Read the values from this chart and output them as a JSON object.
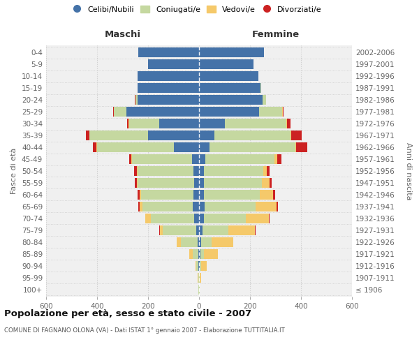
{
  "age_groups": [
    "100+",
    "95-99",
    "90-94",
    "85-89",
    "80-84",
    "75-79",
    "70-74",
    "65-69",
    "60-64",
    "55-59",
    "50-54",
    "45-49",
    "40-44",
    "35-39",
    "30-34",
    "25-29",
    "20-24",
    "15-19",
    "10-14",
    "5-9",
    "0-4"
  ],
  "birth_years": [
    "≤ 1906",
    "1907-1911",
    "1912-1916",
    "1917-1921",
    "1922-1926",
    "1927-1931",
    "1932-1936",
    "1937-1941",
    "1942-1946",
    "1947-1951",
    "1952-1956",
    "1957-1961",
    "1962-1966",
    "1967-1971",
    "1972-1976",
    "1977-1981",
    "1982-1986",
    "1987-1991",
    "1992-1996",
    "1997-2001",
    "2002-2006"
  ],
  "maschi": {
    "celibi": [
      1,
      1,
      2,
      4,
      5,
      12,
      20,
      25,
      22,
      20,
      22,
      28,
      100,
      200,
      155,
      285,
      240,
      240,
      240,
      200,
      238
    ],
    "coniugati": [
      1,
      2,
      8,
      22,
      65,
      130,
      168,
      198,
      205,
      220,
      220,
      235,
      300,
      230,
      120,
      48,
      10,
      2,
      0,
      0,
      0
    ],
    "vedovi": [
      0,
      2,
      5,
      12,
      18,
      12,
      22,
      10,
      6,
      3,
      2,
      2,
      2,
      1,
      1,
      1,
      0,
      0,
      0,
      0,
      0
    ],
    "divorziati": [
      0,
      0,
      0,
      0,
      0,
      2,
      2,
      5,
      8,
      8,
      10,
      10,
      15,
      12,
      5,
      2,
      1,
      0,
      0,
      0,
      0
    ]
  },
  "femmine": {
    "nubili": [
      1,
      1,
      3,
      5,
      8,
      14,
      18,
      22,
      20,
      18,
      18,
      25,
      42,
      60,
      100,
      235,
      248,
      242,
      232,
      215,
      255
    ],
    "coniugate": [
      1,
      2,
      5,
      15,
      40,
      100,
      165,
      200,
      218,
      228,
      235,
      272,
      335,
      298,
      242,
      92,
      15,
      2,
      0,
      0,
      0
    ],
    "vedove": [
      2,
      5,
      22,
      55,
      85,
      105,
      92,
      82,
      52,
      30,
      14,
      10,
      5,
      5,
      3,
      2,
      0,
      0,
      0,
      0,
      0
    ],
    "divorziate": [
      0,
      0,
      0,
      0,
      2,
      2,
      2,
      5,
      8,
      8,
      10,
      15,
      42,
      40,
      15,
      3,
      1,
      0,
      0,
      0,
      0
    ]
  },
  "colors": {
    "celibi": "#4472a8",
    "coniugati": "#c5d8a0",
    "vedovi": "#f5c96a",
    "divorziati": "#cc2222"
  },
  "xlim": 600,
  "title": "Popolazione per età, sesso e stato civile - 2007",
  "subtitle": "COMUNE DI FAGNANO OLONA (VA) - Dati ISTAT 1° gennaio 2007 - Elaborazione TUTTITALIA.IT",
  "ylabel_left": "Fasce di età",
  "ylabel_right": "Anni di nascita",
  "legend_labels": [
    "Celibi/Nubili",
    "Coniugati/e",
    "Vedovi/e",
    "Divorziati/e"
  ],
  "maschi_label": "Maschi",
  "femmine_label": "Femmine",
  "bg_color": "#f0f0f0",
  "grid_color": "#cccccc",
  "text_color": "#666666"
}
